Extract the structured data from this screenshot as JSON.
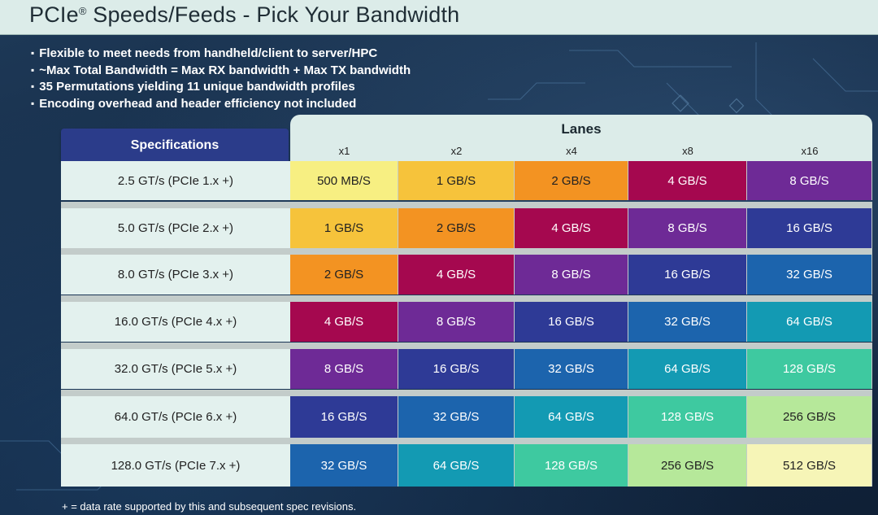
{
  "title": "PCIe",
  "title_mark": "®",
  "title_rest": " Speeds/Feeds - Pick Your Bandwidth",
  "bullets": [
    "Flexible to meet needs from handheld/client to server/HPC",
    "~Max Total Bandwidth = Max RX bandwidth + Max TX bandwidth",
    "35 Permutations yielding 11 unique bandwidth profiles",
    "Encoding overhead and header efficiency not included"
  ],
  "table": {
    "spec_header": "Specifications",
    "lanes_title": "Lanes",
    "lanes": [
      "x1",
      "x2",
      "x4",
      "x8",
      "x16"
    ],
    "rows": [
      {
        "spec": "2.5 GT/s (PCIe 1.x +)",
        "cells": [
          "500 MB/S",
          "1 GB/S",
          "2 GB/S",
          "4 GB/S",
          "8 GB/S"
        ]
      },
      {
        "spec": "5.0 GT/s (PCIe 2.x +)",
        "cells": [
          "1 GB/S",
          "2 GB/S",
          "4 GB/S",
          "8 GB/S",
          "16 GB/S"
        ]
      },
      {
        "spec": "8.0 GT/s (PCIe 3.x +)",
        "cells": [
          "2 GB/S",
          "4 GB/S",
          "8 GB/S",
          "16 GB/S",
          "32 GB/S"
        ]
      },
      {
        "spec": "16.0 GT/s (PCIe 4.x +)",
        "cells": [
          "4 GB/S",
          "8 GB/S",
          "16 GB/S",
          "32 GB/S",
          "64 GB/S"
        ]
      },
      {
        "spec": "32.0 GT/s (PCIe 5.x +)",
        "cells": [
          "8 GB/S",
          "16 GB/S",
          "32 GB/S",
          "64 GB/S",
          "128 GB/S"
        ]
      },
      {
        "spec": "64.0 GT/s (PCIe 6.x +)",
        "cells": [
          "16 GB/S",
          "32 GB/S",
          "64 GB/S",
          "128 GB/S",
          "256 GB/S"
        ]
      },
      {
        "spec": "128.0 GT/s (PCIe 7.x +)",
        "cells": [
          "32 GB/S",
          "64 GB/S",
          "128 GB/S",
          "256 GB/S",
          "512 GB/S"
        ]
      }
    ]
  },
  "bandwidth_colors": {
    "500 MB/S": "#f7ef82",
    "1 GB/S": "#f6c33b",
    "2 GB/S": "#f39322",
    "4 GB/S": "#a5084f",
    "8 GB/S": "#6e2a96",
    "16 GB/S": "#2e3a96",
    "32 GB/S": "#1c64ad",
    "64 GB/S": "#139ab3",
    "128 GB/S": "#3ec9a0",
    "256 GB/S": "#b6e89a",
    "512 GB/S": "#f6f5b7"
  },
  "light_text_values": [
    "500 MB/S",
    "1 GB/S",
    "2 GB/S",
    "256 GB/S",
    "512 GB/S"
  ],
  "footnote": "+ = data rate supported by this and subsequent spec revisions."
}
